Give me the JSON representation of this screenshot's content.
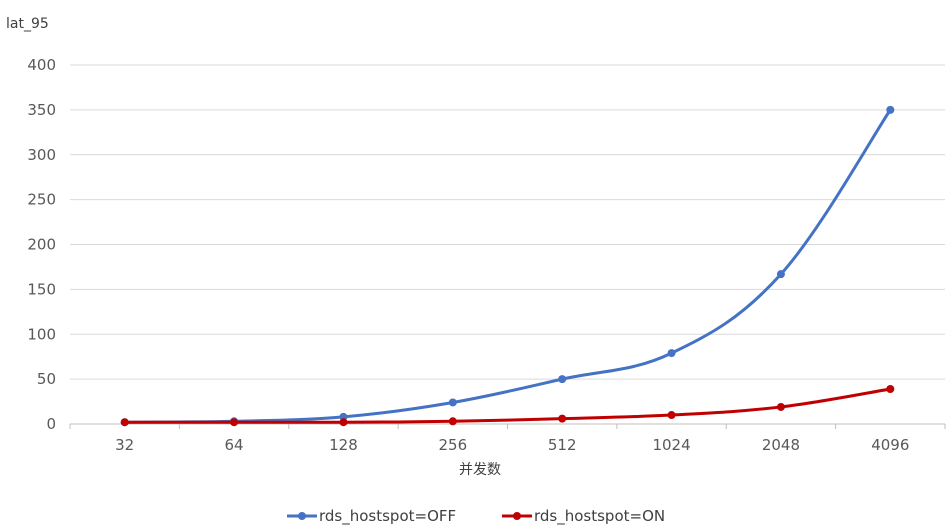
{
  "chart_data": {
    "type": "line",
    "title": "",
    "ylabel": "lat_95",
    "xlabel": "并发数",
    "categories": [
      "32",
      "64",
      "128",
      "256",
      "512",
      "1024",
      "2048",
      "4096"
    ],
    "ylim": [
      0,
      400
    ],
    "yticks": [
      0,
      50,
      100,
      150,
      200,
      250,
      300,
      350,
      400
    ],
    "grid": true,
    "smooth": true,
    "legend_position": "bottom",
    "series": [
      {
        "name": "rds_hostspot=OFF",
        "color": "#4472C4",
        "values": [
          2,
          3,
          8,
          24,
          50,
          79,
          167,
          350
        ]
      },
      {
        "name": "rds_hostspot=ON",
        "color": "#C00000",
        "values": [
          2,
          2,
          2,
          3,
          6,
          10,
          19,
          39
        ]
      }
    ]
  }
}
